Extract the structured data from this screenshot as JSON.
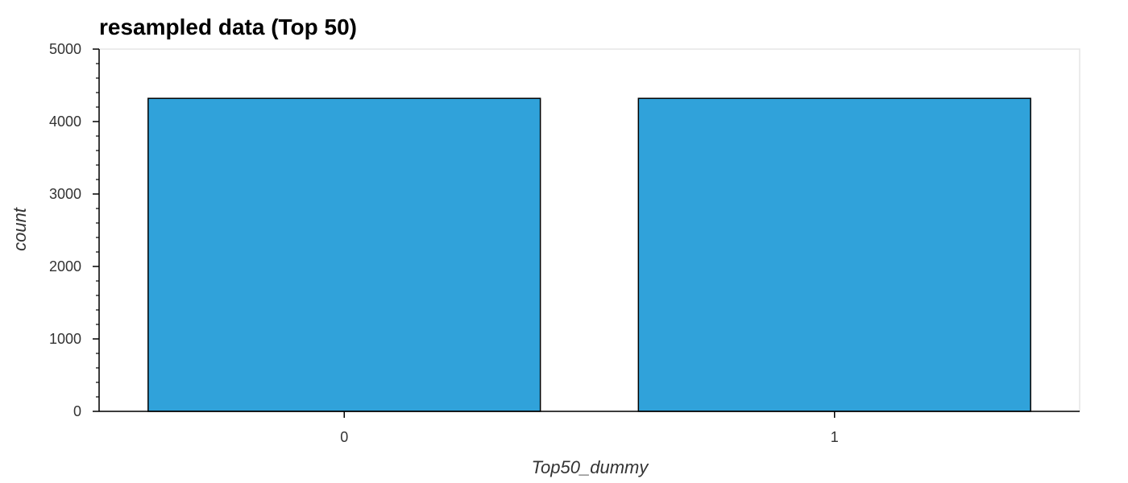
{
  "chart_data": {
    "type": "bar",
    "title": "resampled data (Top 50)",
    "xlabel": "Top50_dummy",
    "ylabel": "count",
    "categories": [
      "0",
      "1"
    ],
    "values": [
      4320,
      4320
    ],
    "ylim": [
      0,
      5000
    ],
    "yticks": [
      0,
      1000,
      2000,
      3000,
      4000,
      5000
    ],
    "yticks_labels": [
      "0",
      "1000",
      "2000",
      "3000",
      "4000",
      "5000"
    ],
    "minor_ticks_per_major": 5,
    "grid": false,
    "legend": "none",
    "bar_color": "#30a2da",
    "bar_edge_color": "#000000",
    "frame_color": "#e5e5e5"
  }
}
